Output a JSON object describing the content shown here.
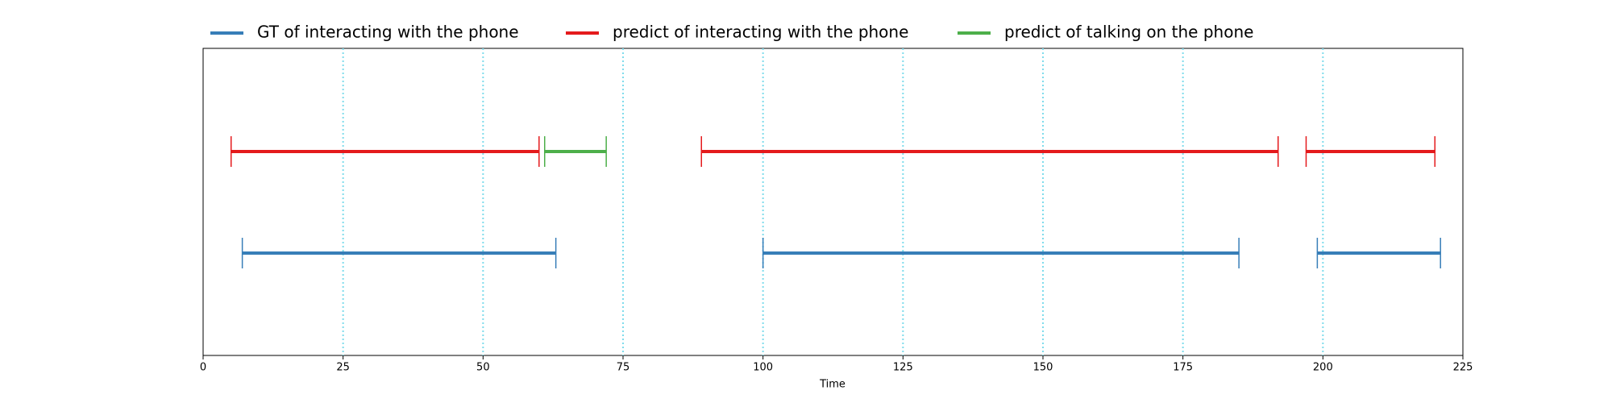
{
  "chart_data": {
    "type": "interval",
    "xlabel": "Time",
    "xlim": [
      0,
      225
    ],
    "xticks": [
      0,
      25,
      50,
      75,
      100,
      125,
      150,
      175,
      200,
      225
    ],
    "grid": true,
    "legend": "top",
    "series": [
      {
        "name": "GT of interacting with the phone",
        "color": "#377eb8",
        "starts": [
          7,
          100,
          199
        ],
        "ends": [
          63,
          185,
          221
        ]
      },
      {
        "name": "predict of interacting with the phone",
        "color": "#e41a1c",
        "starts": [
          5,
          89,
          197
        ],
        "ends": [
          60,
          192,
          220
        ]
      },
      {
        "name": "predict of talking on the phone",
        "color": "#4daf4a",
        "starts": [
          61
        ],
        "ends": [
          72
        ]
      }
    ]
  }
}
